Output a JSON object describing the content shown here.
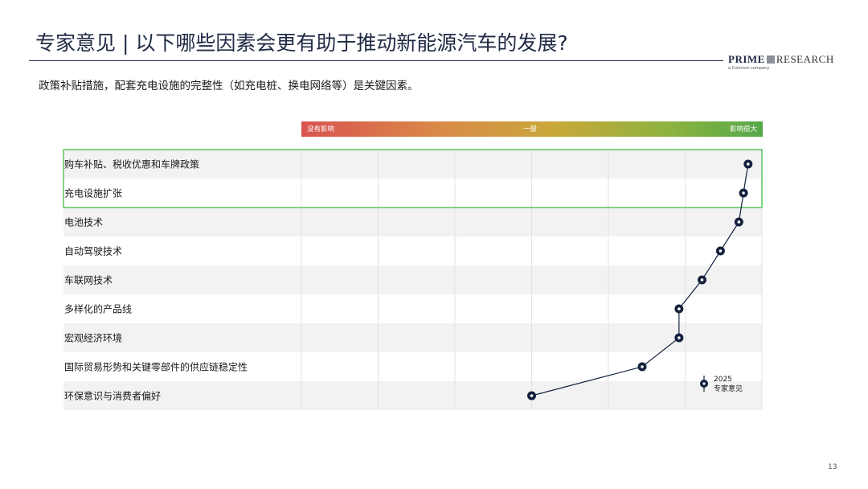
{
  "title": "专家意见 | 以下哪些因素会更有助于推动新能源汽车的发展?",
  "subtitle": "政策补贴措施，配套充电设施的完整性（如充电桩、换电网络等）是关键因素。",
  "logo": {
    "brand": "PRIME",
    "brand2": "RESEARCH",
    "tagline": "a Colorism company"
  },
  "scale_labels": {
    "low": "没有影响",
    "mid": "一般",
    "high": "影响很大"
  },
  "legend": {
    "year": "2025",
    "label": "专家意见"
  },
  "page_number": "13",
  "colors": {
    "marker": "#14213d",
    "highlight_box": "#5cc35c",
    "row_band": "#f2f2f2"
  },
  "chart_data": {
    "type": "scatter",
    "categories": [
      "购车补贴、税收优惠和车牌政策",
      "充电设施扩张",
      "电池技术",
      "自动驾驶技术",
      "车联网技术",
      "多样化的产品线",
      "宏观经济环境",
      "国际贸易形势和关键零部件的供应链稳定性",
      "环保意识与消费者偏好"
    ],
    "values": [
      0.97,
      0.96,
      0.95,
      0.91,
      0.87,
      0.82,
      0.82,
      0.74,
      0.5
    ],
    "xlim": [
      0,
      1
    ],
    "series": [
      {
        "name": "2025 专家意见",
        "values": [
          0.97,
          0.96,
          0.95,
          0.91,
          0.87,
          0.82,
          0.82,
          0.74,
          0.5
        ]
      }
    ],
    "highlighted_categories": [
      "购车补贴、税收优惠和车牌政策",
      "充电设施扩张"
    ]
  }
}
